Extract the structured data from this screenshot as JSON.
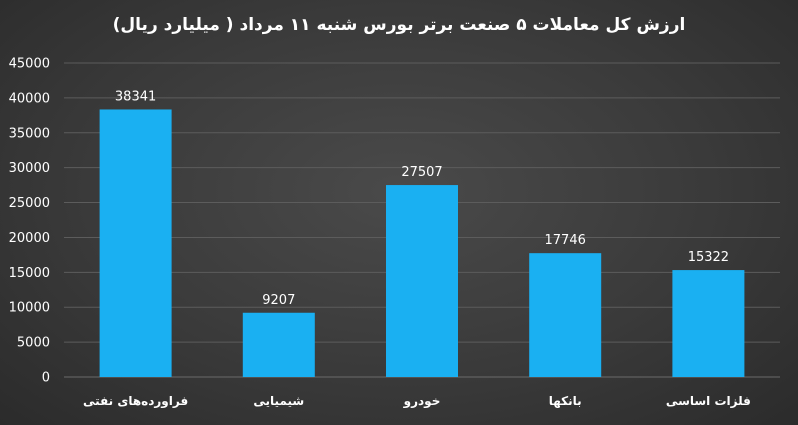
{
  "chart_data": {
    "type": "bar",
    "title": "ارزش کل معاملات ۵ صنعت برتر بورس شنبه ۱۱ مرداد ( میلیارد ریال)",
    "categories": [
      "فراورده‌های نفتی",
      "شیمیایی",
      "خودرو",
      "بانکها",
      "فلزات اساسی"
    ],
    "values": [
      38341,
      9207,
      27507,
      17746,
      15322
    ],
    "data_labels": [
      "38341",
      "9207",
      "27507",
      "17746",
      "15322"
    ],
    "ylim": [
      0,
      45000
    ],
    "yticks": [
      "0",
      "5000",
      "10000",
      "15000",
      "20000",
      "25000",
      "30000",
      "35000",
      "40000",
      "45000"
    ],
    "grid": true,
    "legend": "none",
    "colors": {
      "bar": "#1ab0f2",
      "text": "#ffffff",
      "grid": "#5c5c5c"
    }
  }
}
